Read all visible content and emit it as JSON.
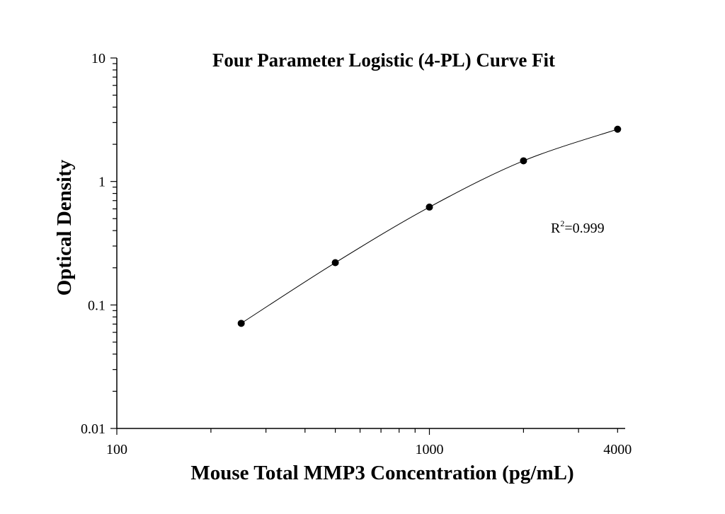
{
  "chart_data": {
    "type": "scatter",
    "title": "Four Parameter Logistic (4-PL) Curve Fit",
    "xlabel": "Mouse Total MMP3 Concentration (pg/mL)",
    "ylabel": "Optical Density",
    "x_scale": "log",
    "y_scale": "log",
    "xlim": [
      100,
      4000
    ],
    "ylim": [
      0.01,
      10
    ],
    "x_ticks": [
      {
        "value": 100,
        "label": "100"
      },
      {
        "value": 1000,
        "label": "1000"
      },
      {
        "value": 4000,
        "label": "4000"
      }
    ],
    "y_ticks": [
      {
        "value": 10,
        "label": "10"
      },
      {
        "value": 1,
        "label": "1"
      },
      {
        "value": 0.1,
        "label": "0.1"
      },
      {
        "value": 0.01,
        "label": "0.01"
      }
    ],
    "grid": false,
    "series": [
      {
        "x": [
          250,
          500,
          1000,
          2000,
          4000
        ],
        "y": [
          0.071,
          0.22,
          0.62,
          1.47,
          2.65
        ],
        "marker": "circle",
        "fit": "4-PL curve",
        "color": "#000000"
      }
    ],
    "annotation": {
      "prefix": "R",
      "sup": "2",
      "suffix": "=0.999"
    }
  }
}
